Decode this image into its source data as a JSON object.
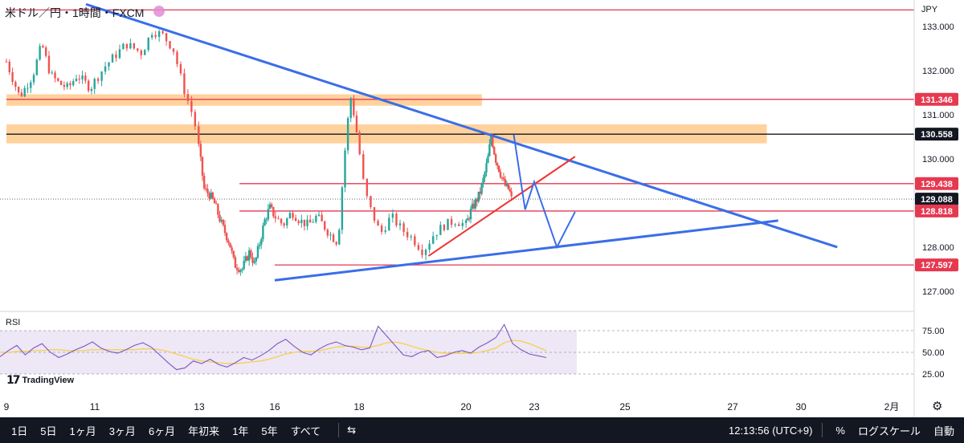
{
  "header": {
    "symbol_title": "米ドル／円・1時間・FXCM",
    "currency": "JPY"
  },
  "rsi": {
    "label": "RSI",
    "levels": [
      75.0,
      50.0,
      25.0
    ]
  },
  "branding": {
    "logo_text": "TradingView"
  },
  "colors": {
    "candle_up": "#26a69a",
    "candle_down": "#ef5350",
    "trendline": "#3a6ee8",
    "level_line": "#e53950",
    "support_red": "#ee3333",
    "zone": "#ffc785",
    "rsi_line": "#7e57c2",
    "rsi_ma": "#f6d04d",
    "rsi_band": "#ede7f6"
  },
  "chart_data": {
    "type": "candlestick",
    "symbol": "USD/JPY",
    "interval": "1h",
    "ylim": [
      126.6,
      133.45
    ],
    "y_ticks": [
      "133.000",
      "132.000",
      "131.000",
      "130.000",
      "129.000",
      "128.000",
      "127.000"
    ],
    "x_ticks": [
      "9",
      "11",
      "13",
      "16",
      "18",
      "20",
      "23",
      "25",
      "27",
      "30",
      "2月"
    ],
    "price_labels": [
      {
        "price": 131.346,
        "text": "131.346",
        "style": "red"
      },
      {
        "price": 130.558,
        "text": "130.558",
        "style": "black"
      },
      {
        "price": 129.438,
        "text": "129.438",
        "style": "red"
      },
      {
        "price": 129.088,
        "text": "129.088",
        "style": "black"
      },
      {
        "price": 128.818,
        "text": "128.818",
        "style": "red"
      },
      {
        "price": 127.597,
        "text": "127.597",
        "style": "red"
      }
    ],
    "horizontal_levels": [
      {
        "price": 133.37,
        "x_from": "9",
        "color": "level_line"
      },
      {
        "price": 131.346,
        "x_from": "9",
        "color": "level_line"
      },
      {
        "price": 130.558,
        "x_from": "9",
        "color": "black"
      },
      {
        "price": 129.438,
        "x_from": "14.6",
        "color": "level_line"
      },
      {
        "price": 128.818,
        "x_from": "14.6",
        "color": "level_line"
      },
      {
        "price": 127.597,
        "x_from": "16",
        "color": "level_line"
      }
    ],
    "zones": [
      {
        "from": 131.2,
        "to": 131.46,
        "x_from": "9",
        "x_to": "20.7"
      },
      {
        "from": 130.35,
        "to": 130.78,
        "x_from": "9",
        "x_to": "28.5"
      }
    ],
    "trendlines": [
      {
        "name": "resistance",
        "points": [
          [
            "10.8",
            133.5
          ],
          [
            "31.2",
            128.0
          ]
        ]
      },
      {
        "name": "support",
        "points": [
          [
            "16.0",
            127.25
          ],
          [
            "29.0",
            128.6
          ]
        ]
      }
    ],
    "red_support_line": {
      "points": [
        [
          "19.3",
          127.8
        ],
        [
          "23.9",
          130.05
        ]
      ]
    },
    "projection_path": [
      [
        "22.1",
        130.55
      ],
      [
        "22.6",
        128.85
      ],
      [
        "23.0",
        129.48
      ],
      [
        "23.5",
        128.0
      ],
      [
        "23.9",
        128.8
      ]
    ],
    "last_price": 129.088,
    "price_path": [
      [
        "9.0",
        132.2
      ],
      [
        "9.3",
        131.4
      ],
      [
        "9.6",
        131.9
      ],
      [
        "9.8",
        132.6
      ],
      [
        "10.0",
        131.9
      ],
      [
        "10.2",
        131.7
      ],
      [
        "10.4",
        131.6
      ],
      [
        "10.6",
        131.9
      ],
      [
        "10.9",
        131.6
      ],
      [
        "11.2",
        132.1
      ],
      [
        "11.6",
        132.6
      ],
      [
        "11.9",
        132.4
      ],
      [
        "12.1",
        132.9
      ],
      [
        "12.3",
        132.8
      ],
      [
        "12.5",
        132.5
      ],
      [
        "12.7",
        131.6
      ],
      [
        "12.9",
        130.9
      ],
      [
        "13.0",
        130.2
      ],
      [
        "13.2",
        129.3
      ],
      [
        "13.4",
        129.2
      ],
      [
        "13.6",
        129.0
      ],
      [
        "13.9",
        128.5
      ],
      [
        "14.2",
        128.1
      ],
      [
        "14.4",
        127.6
      ],
      [
        "14.7",
        127.5
      ],
      [
        "15.0",
        127.9
      ],
      [
        "15.2",
        127.6
      ],
      [
        "15.4",
        128.1
      ],
      [
        "15.6",
        128.6
      ],
      [
        "15.8",
        128.9
      ],
      [
        "16.0",
        128.7
      ],
      [
        "16.2",
        128.5
      ],
      [
        "16.4",
        128.8
      ],
      [
        "16.6",
        128.6
      ],
      [
        "16.8",
        128.5
      ],
      [
        "17.0",
        128.7
      ],
      [
        "17.3",
        128.3
      ],
      [
        "17.5",
        128.1
      ],
      [
        "17.6",
        129.4
      ],
      [
        "17.7",
        130.6
      ],
      [
        "17.8",
        131.4
      ],
      [
        "17.9",
        130.9
      ],
      [
        "18.0",
        130.2
      ],
      [
        "18.1",
        129.3
      ],
      [
        "18.2",
        128.9
      ],
      [
        "18.4",
        128.3
      ],
      [
        "18.6",
        128.7
      ],
      [
        "18.8",
        128.4
      ],
      [
        "19.0",
        128.2
      ],
      [
        "19.2",
        127.9
      ],
      [
        "19.4",
        128.3
      ],
      [
        "19.6",
        128.5
      ],
      [
        "19.8",
        128.6
      ],
      [
        "20.0",
        128.5
      ],
      [
        "20.2",
        128.8
      ],
      [
        "20.4",
        129.0
      ],
      [
        "20.6",
        129.2
      ],
      [
        "20.8",
        129.6
      ],
      [
        "21.0",
        130.1
      ],
      [
        "21.1",
        130.55
      ],
      [
        "21.3",
        130.0
      ],
      [
        "21.5",
        129.7
      ],
      [
        "21.7",
        129.4
      ],
      [
        "21.9",
        129.3
      ],
      [
        "22.0",
        129.088
      ]
    ],
    "rsi_series": {
      "name": "RSI",
      "values": [
        45,
        52,
        58,
        47,
        55,
        60,
        50,
        44,
        48,
        53,
        57,
        62,
        55,
        51,
        49,
        53,
        58,
        61,
        56,
        47,
        38,
        30,
        32,
        40,
        37,
        42,
        36,
        33,
        38,
        44,
        41,
        46,
        52,
        60,
        65,
        57,
        50,
        47,
        54,
        59,
        62,
        58,
        56,
        53,
        55,
        80,
        69,
        58,
        47,
        45,
        50,
        52,
        44,
        46,
        50,
        52,
        49,
        56,
        61,
        67,
        82,
        60,
        53,
        48,
        46,
        44
      ]
    },
    "rsi_ma_values": [
      50,
      50,
      51,
      51,
      52,
      52,
      53,
      53,
      52,
      52,
      52,
      53,
      53,
      53,
      53,
      53,
      53,
      54,
      54,
      53,
      51,
      48,
      45,
      42,
      40,
      39,
      38,
      37,
      37,
      38,
      39,
      40,
      42,
      45,
      48,
      50,
      51,
      51,
      52,
      54,
      56,
      57,
      57,
      56,
      56,
      58,
      61,
      62,
      60,
      57,
      54,
      52,
      50,
      49,
      49,
      49,
      49,
      50,
      52,
      55,
      61,
      64,
      63,
      60,
      56,
      52
    ]
  },
  "toolbar": {
    "ranges": [
      "1日",
      "5日",
      "1ヶ月",
      "3ヶ月",
      "6ヶ月",
      "年初来",
      "1年",
      "5年",
      "すべて"
    ],
    "compare_icon": "compare-icon",
    "clock": "12:13:56 (UTC+9)",
    "percent": "%",
    "log_scale": "ログスケール",
    "auto": "自動"
  }
}
